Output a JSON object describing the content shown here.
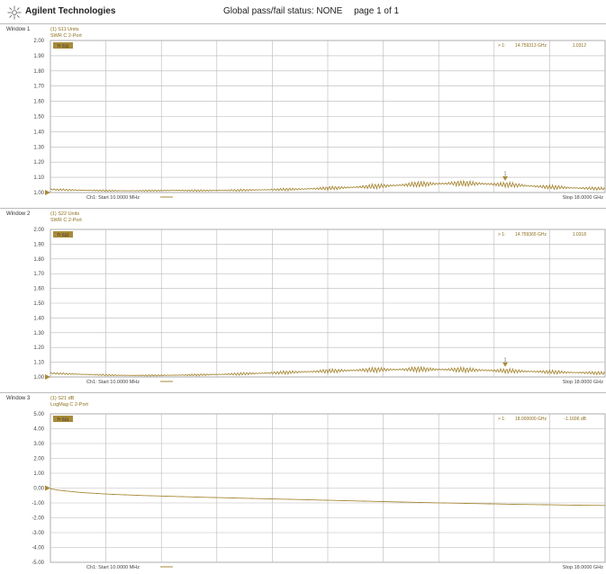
{
  "header": {
    "brand": "Agilent Technologies",
    "status": "Global pass/fail status: NONE",
    "page": "page 1 of 1"
  },
  "colors": {
    "trace": "#a88a3a",
    "grid": "#b8b8b8",
    "label": "#8c6e1c"
  },
  "chart_data": [
    {
      "type": "line",
      "window_label": "Window 1",
      "title_lines": [
        "(1) S11 Units",
        "SWR C 2-Port"
      ],
      "trace_badge": "Tr S11",
      "marker_readout": [
        "> 1:",
        "14.759313 GHz",
        "1.0312"
      ],
      "marker_number": "1",
      "marker_x": 14.7593,
      "ylim": [
        1.0,
        2.0
      ],
      "xlim": [
        0.01,
        18.0
      ],
      "yticks": [
        "2.00",
        "1.90",
        "1.80",
        "1.70",
        "1.60",
        "1.50",
        "1.40",
        "1.30",
        "1.20",
        "1.10",
        "1.00"
      ],
      "start_label": "Ch1: Start 10.0000 MHz",
      "stop_label": "Stop 18.0000 GHz",
      "grid": true,
      "series": [
        {
          "x": [
            0.01,
            1,
            2,
            3,
            4,
            5,
            6,
            7,
            8,
            9,
            10,
            11,
            12,
            13,
            14,
            15,
            16,
            17,
            18
          ],
          "y": [
            1.02,
            1.015,
            1.012,
            1.012,
            1.014,
            1.013,
            1.015,
            1.018,
            1.022,
            1.028,
            1.036,
            1.045,
            1.055,
            1.06,
            1.058,
            1.05,
            1.038,
            1.03,
            1.025
          ],
          "ripple": [
            0.012,
            0.012,
            0.01,
            0.01,
            0.012,
            0.012,
            0.013,
            0.015,
            0.02,
            0.025,
            0.03,
            0.035,
            0.04,
            0.04,
            0.04,
            0.035,
            0.03,
            0.025,
            0.02
          ]
        }
      ]
    },
    {
      "type": "line",
      "window_label": "Window 2",
      "title_lines": [
        "(1) S22 Units",
        "SWR C 2-Port"
      ],
      "trace_badge": "Tr S22",
      "marker_readout": [
        "> 1:",
        "14.759365 GHz",
        "1.0318"
      ],
      "marker_number": "1",
      "marker_x": 14.7594,
      "ylim": [
        1.0,
        2.0
      ],
      "xlim": [
        0.01,
        18.0
      ],
      "yticks": [
        "2.00",
        "1.90",
        "1.80",
        "1.70",
        "1.60",
        "1.50",
        "1.40",
        "1.30",
        "1.20",
        "1.10",
        "1.00"
      ],
      "start_label": "Ch1: Start 10.0000 MHz",
      "stop_label": "Stop 18.0000 GHz",
      "grid": true,
      "series": [
        {
          "x": [
            0.01,
            1,
            2,
            3,
            4,
            5,
            6,
            7,
            8,
            9,
            10,
            11,
            12,
            13,
            14,
            15,
            16,
            17,
            18
          ],
          "y": [
            1.025,
            1.018,
            1.012,
            1.01,
            1.012,
            1.015,
            1.02,
            1.026,
            1.033,
            1.04,
            1.046,
            1.05,
            1.052,
            1.05,
            1.046,
            1.04,
            1.035,
            1.03,
            1.026
          ],
          "ripple": [
            0.012,
            0.012,
            0.01,
            0.01,
            0.012,
            0.015,
            0.018,
            0.022,
            0.026,
            0.03,
            0.034,
            0.036,
            0.038,
            0.038,
            0.036,
            0.032,
            0.028,
            0.025,
            0.022
          ]
        }
      ]
    },
    {
      "type": "line",
      "window_label": "Window 3",
      "title_lines": [
        "(1) S21 dB",
        "LogMag C 2-Port"
      ],
      "trace_badge": "Tr S21",
      "marker_readout": [
        "> 1:",
        "18.000000 GHz",
        "-1.1696 dB"
      ],
      "marker_number": "",
      "marker_x": 18.0,
      "ylim": [
        -5.0,
        5.0
      ],
      "xlim": [
        0.01,
        18.0
      ],
      "yticks": [
        "5.00",
        "4.00",
        "3.00",
        "2.00",
        "1.00",
        "0.00",
        "-1.00",
        "-2.00",
        "-3.00",
        "-4.00",
        "-5.00"
      ],
      "start_label": "Ch1: Start 10.0000 MHz",
      "stop_label": "Stop 18.0000 GHz",
      "grid": true,
      "series": [
        {
          "x": [
            0.01,
            0.3,
            1,
            2,
            3,
            4,
            5,
            6,
            7,
            8,
            9,
            10,
            11,
            12,
            13,
            14,
            15,
            16,
            17,
            18
          ],
          "y": [
            -0.05,
            -0.15,
            -0.3,
            -0.42,
            -0.5,
            -0.56,
            -0.62,
            -0.67,
            -0.72,
            -0.77,
            -0.82,
            -0.87,
            -0.92,
            -0.97,
            -1.01,
            -1.05,
            -1.09,
            -1.12,
            -1.15,
            -1.17
          ],
          "ripple": [
            0,
            0,
            0,
            0,
            0,
            0,
            0,
            0,
            0,
            0,
            0,
            0,
            0,
            0,
            0,
            0,
            0,
            0,
            0,
            0
          ]
        }
      ]
    }
  ]
}
